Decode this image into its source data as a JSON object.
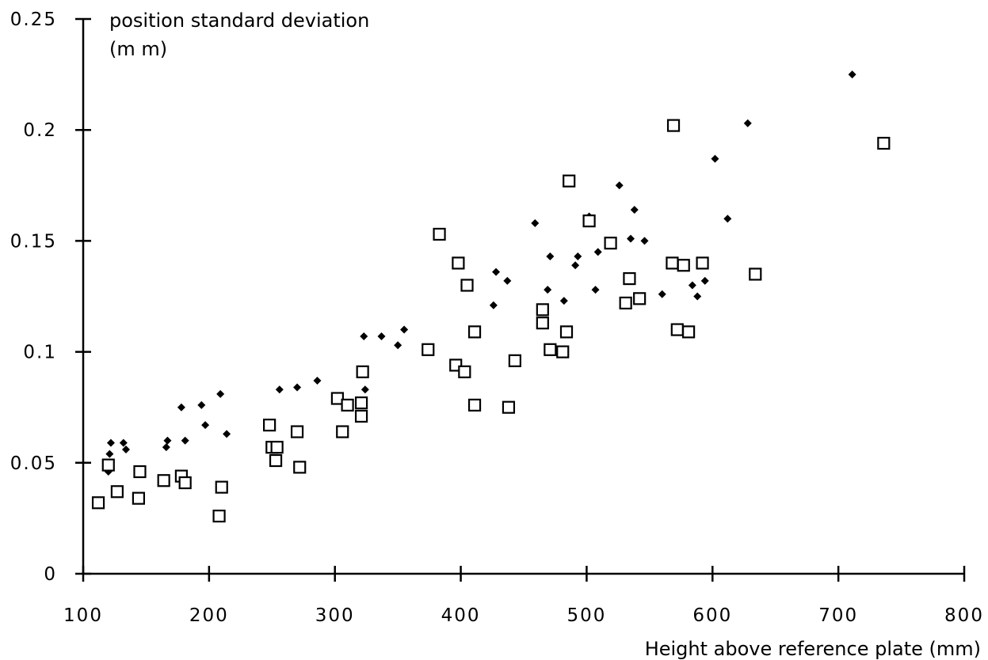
{
  "chart_data": {
    "type": "scatter",
    "title": "",
    "xlabel": "Height above reference plate (mm)",
    "ylabel_line1": "position standard deviation",
    "ylabel_line2": "(m m)",
    "xlim": [
      100,
      800
    ],
    "ylim": [
      0,
      0.25
    ],
    "xticks": [
      100,
      200,
      300,
      400,
      500,
      600,
      700,
      800
    ],
    "yticks": [
      0,
      0.05,
      0.1,
      0.15,
      0.2,
      0.25
    ],
    "xtick_labels": [
      "100",
      "200",
      "300",
      "400",
      "500",
      "600",
      "700",
      "800"
    ],
    "ytick_labels": [
      "0",
      "0.05",
      "0.1",
      "0.15",
      "0.2",
      "0.25"
    ],
    "grid": false,
    "legend": null,
    "series": [
      {
        "marker": "diamond-filled",
        "color": "#000000",
        "points": [
          [
            120,
            0.046
          ],
          [
            121,
            0.054
          ],
          [
            122,
            0.059
          ],
          [
            132,
            0.059
          ],
          [
            134,
            0.056
          ],
          [
            166,
            0.057
          ],
          [
            167,
            0.06
          ],
          [
            178,
            0.075
          ],
          [
            181,
            0.06
          ],
          [
            194,
            0.076
          ],
          [
            197,
            0.067
          ],
          [
            209,
            0.081
          ],
          [
            214,
            0.063
          ],
          [
            256,
            0.083
          ],
          [
            270,
            0.084
          ],
          [
            286,
            0.087
          ],
          [
            323,
            0.107
          ],
          [
            324,
            0.083
          ],
          [
            337,
            0.107
          ],
          [
            350,
            0.103
          ],
          [
            355,
            0.11
          ],
          [
            426,
            0.121
          ],
          [
            428,
            0.136
          ],
          [
            437,
            0.132
          ],
          [
            459,
            0.158
          ],
          [
            469,
            0.128
          ],
          [
            471,
            0.143
          ],
          [
            482,
            0.123
          ],
          [
            491,
            0.139
          ],
          [
            493,
            0.143
          ],
          [
            502,
            0.161
          ],
          [
            507,
            0.128
          ],
          [
            509,
            0.145
          ],
          [
            526,
            0.175
          ],
          [
            535,
            0.151
          ],
          [
            538,
            0.164
          ],
          [
            546,
            0.15
          ],
          [
            560,
            0.126
          ],
          [
            584,
            0.13
          ],
          [
            588,
            0.125
          ],
          [
            594,
            0.132
          ],
          [
            602,
            0.187
          ],
          [
            612,
            0.16
          ],
          [
            628,
            0.203
          ],
          [
            711,
            0.225
          ]
        ]
      },
      {
        "marker": "square-open",
        "color": "#000000",
        "points": [
          [
            112,
            0.032
          ],
          [
            120,
            0.049
          ],
          [
            127,
            0.037
          ],
          [
            144,
            0.034
          ],
          [
            145,
            0.046
          ],
          [
            164,
            0.042
          ],
          [
            178,
            0.044
          ],
          [
            181,
            0.041
          ],
          [
            208,
            0.026
          ],
          [
            210,
            0.039
          ],
          [
            248,
            0.067
          ],
          [
            250,
            0.057
          ],
          [
            253,
            0.051
          ],
          [
            254,
            0.057
          ],
          [
            270,
            0.064
          ],
          [
            272,
            0.048
          ],
          [
            302,
            0.079
          ],
          [
            306,
            0.064
          ],
          [
            310,
            0.076
          ],
          [
            321,
            0.077
          ],
          [
            321,
            0.071
          ],
          [
            322,
            0.091
          ],
          [
            374,
            0.101
          ],
          [
            383,
            0.153
          ],
          [
            396,
            0.094
          ],
          [
            398,
            0.14
          ],
          [
            403,
            0.091
          ],
          [
            405,
            0.13
          ],
          [
            411,
            0.109
          ],
          [
            411,
            0.076
          ],
          [
            438,
            0.075
          ],
          [
            443,
            0.096
          ],
          [
            465,
            0.119
          ],
          [
            465,
            0.113
          ],
          [
            471,
            0.101
          ],
          [
            481,
            0.1
          ],
          [
            484,
            0.109
          ],
          [
            486,
            0.177
          ],
          [
            502,
            0.159
          ],
          [
            519,
            0.149
          ],
          [
            531,
            0.122
          ],
          [
            534,
            0.133
          ],
          [
            542,
            0.124
          ],
          [
            568,
            0.14
          ],
          [
            569,
            0.202
          ],
          [
            572,
            0.11
          ],
          [
            577,
            0.139
          ],
          [
            581,
            0.109
          ],
          [
            592,
            0.14
          ],
          [
            634,
            0.135
          ],
          [
            736,
            0.194
          ]
        ]
      }
    ]
  }
}
